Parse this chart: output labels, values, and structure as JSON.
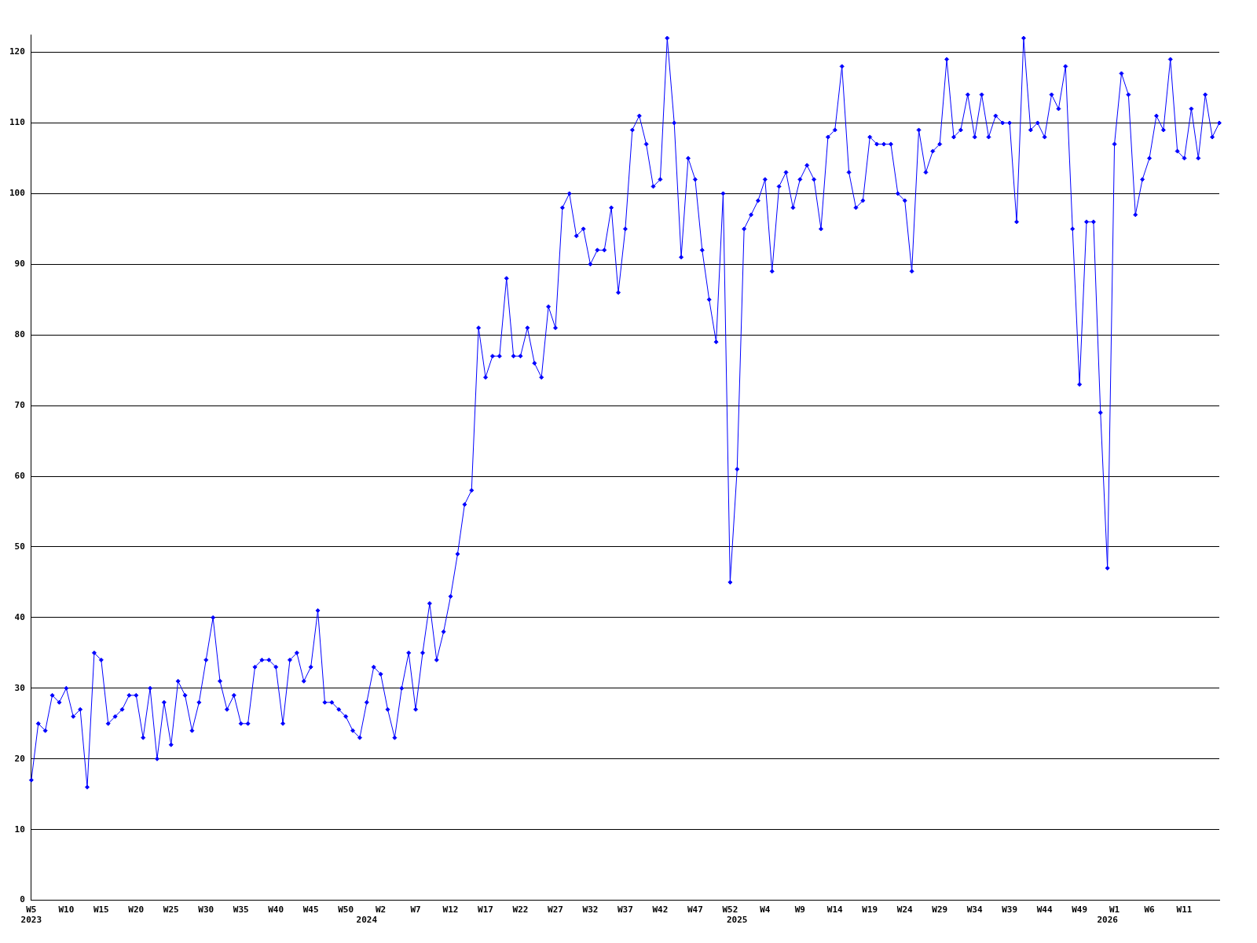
{
  "chart_data": {
    "type": "line",
    "categories": [
      "W5\n2023",
      null,
      null,
      null,
      null,
      "W10",
      null,
      null,
      null,
      null,
      "W15",
      null,
      null,
      null,
      null,
      "W20",
      null,
      null,
      null,
      null,
      "W25",
      null,
      null,
      null,
      null,
      "W30",
      null,
      null,
      null,
      null,
      "W35",
      null,
      null,
      null,
      null,
      "W40",
      null,
      null,
      null,
      null,
      "W45",
      null,
      null,
      null,
      null,
      "W50",
      null,
      null,
      "\n2024",
      null,
      "W2",
      null,
      null,
      null,
      null,
      "W7",
      null,
      null,
      null,
      null,
      "W12",
      null,
      null,
      null,
      null,
      "W17",
      null,
      null,
      null,
      null,
      "W22",
      null,
      null,
      null,
      null,
      "W27",
      null,
      null,
      null,
      null,
      "W32",
      null,
      null,
      null,
      null,
      "W37",
      null,
      null,
      null,
      null,
      "W42",
      null,
      null,
      null,
      null,
      "W47",
      null,
      null,
      null,
      null,
      "W52",
      "\n2025",
      null,
      null,
      null,
      "W4",
      null,
      null,
      null,
      null,
      "W9",
      null,
      null,
      null,
      null,
      "W14",
      null,
      null,
      null,
      null,
      "W19",
      null,
      null,
      null,
      null,
      "W24",
      null,
      null,
      null,
      null,
      "W29",
      null,
      null,
      null,
      null,
      "W34",
      null,
      null,
      null,
      null,
      "W39",
      null,
      null,
      null,
      null,
      "W44",
      null,
      null,
      null,
      null,
      "W49",
      null,
      null,
      null,
      "\n2026",
      "W1",
      null,
      null,
      null,
      null,
      "W6",
      null,
      null,
      null,
      null,
      "W11",
      null,
      null,
      null,
      null,
      null
    ],
    "series": [
      {
        "color": "#0000ff",
        "values": [
          17,
          25,
          24,
          29,
          28,
          30,
          26,
          27,
          16,
          35,
          34,
          25,
          26,
          27,
          29,
          29,
          23,
          30,
          20,
          28,
          22,
          31,
          29,
          24,
          28,
          34,
          40,
          31,
          27,
          29,
          25,
          25,
          33,
          34,
          34,
          33,
          25,
          34,
          35,
          31,
          33,
          41,
          28,
          28,
          27,
          26,
          24,
          23,
          28,
          33,
          32,
          27,
          23,
          30,
          35,
          27,
          35,
          42,
          34,
          38,
          43,
          49,
          56,
          58,
          81,
          74,
          77,
          77,
          88,
          77,
          77,
          81,
          76,
          74,
          84,
          81,
          98,
          100,
          94,
          95,
          90,
          92,
          92,
          98,
          86,
          95,
          109,
          111,
          107,
          101,
          102,
          122,
          110,
          91,
          105,
          102,
          92,
          85,
          79,
          100,
          45,
          61,
          95,
          97,
          99,
          102,
          89,
          101,
          103,
          98,
          102,
          104,
          102,
          95,
          108,
          109,
          118,
          103,
          98,
          99,
          108,
          107,
          107,
          107,
          100,
          99,
          89,
          109,
          103,
          106,
          107,
          119,
          108,
          109,
          114,
          108,
          114,
          108,
          111,
          110,
          110,
          96,
          122,
          109,
          110,
          108,
          114,
          112,
          118,
          95,
          73,
          96,
          96,
          69,
          47,
          107,
          117,
          114,
          97,
          102,
          105,
          111,
          109,
          119,
          106,
          105,
          112,
          105,
          114,
          108,
          110
        ]
      }
    ],
    "ylim": [
      0,
      122.5
    ],
    "yticks": [
      0,
      10,
      20,
      30,
      40,
      50,
      60,
      70,
      80,
      90,
      100,
      110,
      120
    ],
    "grid": "y",
    "legend": false,
    "marker": "diamond",
    "line_style": "solid"
  }
}
